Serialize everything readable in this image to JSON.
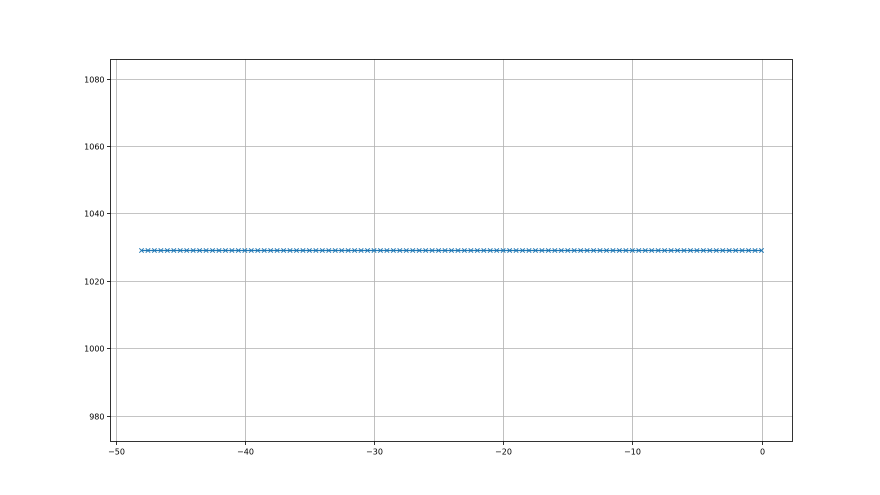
{
  "chart_data": {
    "type": "line",
    "title": "",
    "xlabel": "",
    "ylabel": "",
    "xlim": [
      -50.4,
      2.4
    ],
    "ylim": [
      972.3,
      1085.7
    ],
    "grid": true,
    "x_ticks": [
      -50,
      -40,
      -30,
      -20,
      -10,
      0
    ],
    "x_tick_labels": [
      "−50",
      "−40",
      "−30",
      "−20",
      "−10",
      "0"
    ],
    "y_ticks": [
      980,
      1000,
      1020,
      1040,
      1060,
      1080
    ],
    "y_tick_labels": [
      "980",
      "1000",
      "1020",
      "1040",
      "1060",
      "1080"
    ],
    "series": [
      {
        "marker": "x",
        "color": "#1f77b4",
        "x_start": -48,
        "x_end": 0,
        "x_step": 0.5,
        "y": 1029
      }
    ]
  }
}
